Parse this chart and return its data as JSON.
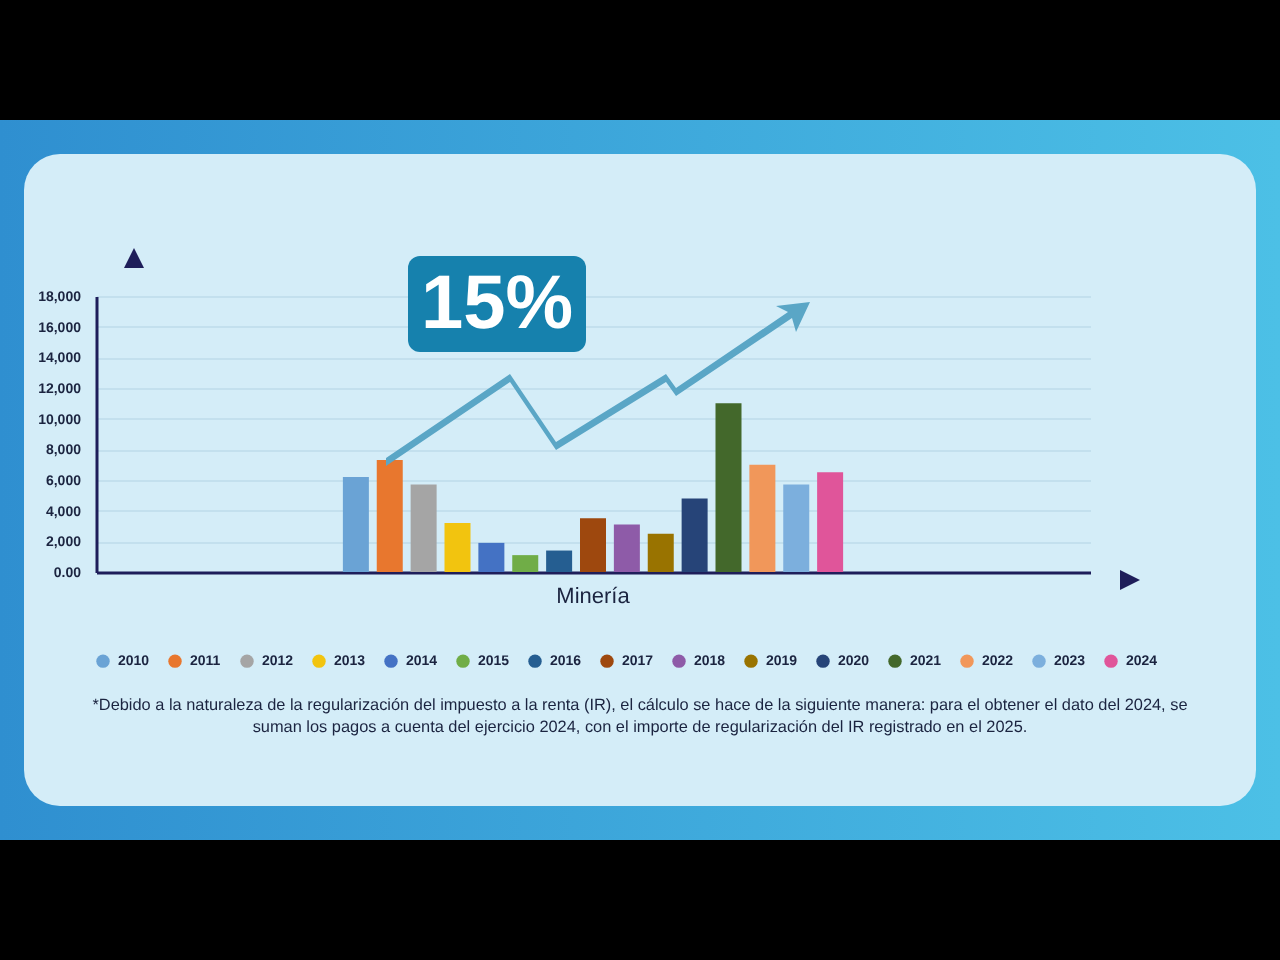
{
  "chart_data": {
    "type": "bar",
    "categories": [
      "Minería"
    ],
    "series": [
      {
        "name": "2010",
        "color": "#6aa3d5",
        "values": [
          6200
        ]
      },
      {
        "name": "2011",
        "color": "#e8772e",
        "values": [
          7300
        ]
      },
      {
        "name": "2012",
        "color": "#a5a5a5",
        "values": [
          5700
        ]
      },
      {
        "name": "2013",
        "color": "#f2c40f",
        "values": [
          3200
        ]
      },
      {
        "name": "2014",
        "color": "#4472c4",
        "values": [
          1900
        ]
      },
      {
        "name": "2015",
        "color": "#70ad47",
        "values": [
          1100
        ]
      },
      {
        "name": "2016",
        "color": "#255e91",
        "values": [
          1400
        ]
      },
      {
        "name": "2017",
        "color": "#9e480e",
        "values": [
          3500
        ]
      },
      {
        "name": "2018",
        "color": "#8e5ba8",
        "values": [
          3100
        ]
      },
      {
        "name": "2019",
        "color": "#997300",
        "values": [
          2500
        ]
      },
      {
        "name": "2020",
        "color": "#264478",
        "values": [
          4800
        ]
      },
      {
        "name": "2021",
        "color": "#43682b",
        "values": [
          11000
        ]
      },
      {
        "name": "2022",
        "color": "#f1975a",
        "values": [
          7000
        ]
      },
      {
        "name": "2023",
        "color": "#7cafdd",
        "values": [
          5700
        ]
      },
      {
        "name": "2024",
        "color": "#e0559a",
        "values": [
          6500
        ]
      }
    ],
    "ylim": [
      0,
      18000
    ],
    "yticks": [
      {
        "value": 0,
        "label": "0.00"
      },
      {
        "value": 2000,
        "label": "2,000"
      },
      {
        "value": 4000,
        "label": "4,000"
      },
      {
        "value": 6000,
        "label": "6,000"
      },
      {
        "value": 8000,
        "label": "8,000"
      },
      {
        "value": 10000,
        "label": "10,000"
      },
      {
        "value": 12000,
        "label": "12,000"
      },
      {
        "value": 14000,
        "label": "14,000"
      },
      {
        "value": 16000,
        "label": "16,000"
      },
      {
        "value": 18000,
        "label": "18,000"
      }
    ],
    "grid": "y",
    "legend": "bottom",
    "annotations": [
      "15%",
      "*Debido a la naturaleza de la regularización del impuesto a la renta (IR), el cálculo se hace de la siguiente manera: para el obtener el dato del 2024, se suman los pagos a cuenta del ejercicio 2024, con el importe de regularización del IR registrado en el 2025."
    ]
  }
}
